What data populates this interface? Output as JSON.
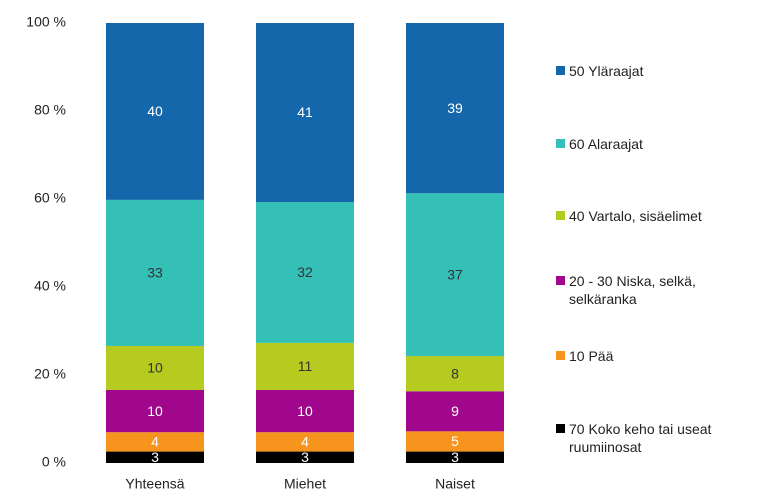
{
  "chart_data": {
    "type": "stacked_bar",
    "categories": [
      "Yhteensä",
      "Miehet",
      "Naiset"
    ],
    "ylim": [
      0,
      100
    ],
    "yticks": [
      {
        "value": 0,
        "label": "0 %"
      },
      {
        "value": 20,
        "label": "20 %"
      },
      {
        "value": 40,
        "label": "40 %"
      },
      {
        "value": 60,
        "label": "60 %"
      },
      {
        "value": 80,
        "label": "80 %"
      },
      {
        "value": 100,
        "label": "100 %"
      }
    ],
    "series": [
      {
        "name": "70 Koko keho tai useat ruumiinosat",
        "color": "#000000",
        "label_color": "#ffffff",
        "values": [
          2.6,
          2.6,
          2.6
        ],
        "value_labels": [
          "3",
          "3",
          "3"
        ]
      },
      {
        "name": "10 Pää",
        "color": "#f7941d",
        "label_color": "#ffffff",
        "values": [
          4.4,
          4.4,
          4.6
        ],
        "value_labels": [
          "4",
          "4",
          "5"
        ]
      },
      {
        "name": "20 - 30 Niska,  selkä, selkäranka",
        "color": "#a0078d",
        "label_color": "#ffffff",
        "values": [
          9.6,
          9.6,
          9.1
        ],
        "value_labels": [
          "10",
          "10",
          "9"
        ]
      },
      {
        "name": "40 Vartalo, sisäelimet",
        "color": "#b5cb1f",
        "label_color": "#333333",
        "values": [
          10.0,
          10.7,
          8.0
        ],
        "value_labels": [
          "10",
          "11",
          "8"
        ]
      },
      {
        "name": "60 Alaraajat",
        "color": "#34bfb7",
        "label_color": "#333333",
        "values": [
          33.2,
          32.0,
          37.0
        ],
        "value_labels": [
          "33",
          "32",
          "37"
        ]
      },
      {
        "name": "50 Yläraajat",
        "color": "#1467ab",
        "label_color": "#ffffff",
        "values": [
          40.2,
          40.7,
          38.7
        ],
        "value_labels": [
          "40",
          "41",
          "39"
        ]
      }
    ]
  }
}
